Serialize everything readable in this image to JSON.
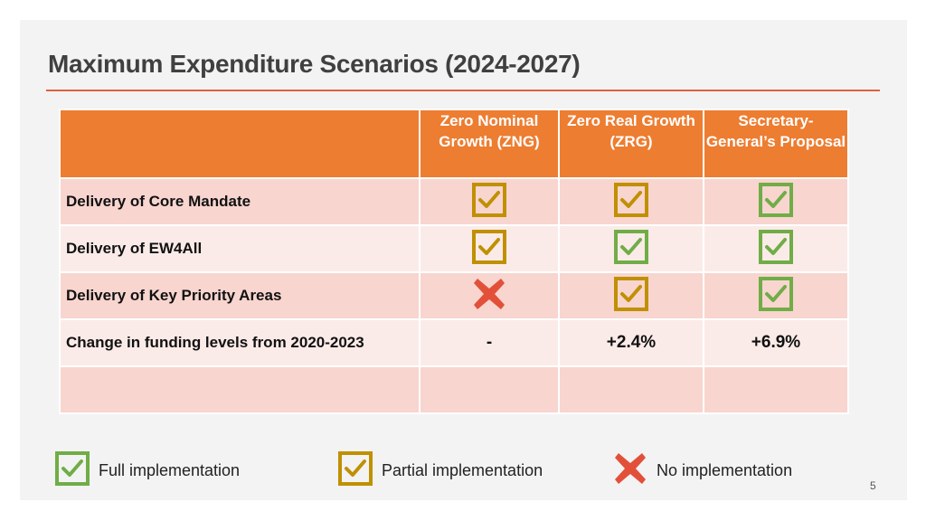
{
  "slide": {
    "title": "Maximum Expenditure Scenarios (2024-2027)",
    "page_number": "5"
  },
  "table": {
    "headers": [
      "",
      "Zero Nominal Growth (ZNG)",
      "Zero Real Growth (ZRG)",
      "Secretary-General’s Proposal"
    ],
    "rows": [
      {
        "label": "Delivery of Core Mandate",
        "cells": [
          "partial",
          "partial",
          "full"
        ]
      },
      {
        "label": "Delivery of EW4All",
        "cells": [
          "partial",
          "full",
          "full"
        ]
      },
      {
        "label": "Delivery of Key Priority Areas",
        "cells": [
          "none",
          "partial",
          "full"
        ]
      },
      {
        "label": "Change in funding levels from 2020-2023",
        "cells": [
          "-",
          "+2.4%",
          "+6.9%"
        ]
      },
      {
        "label": "",
        "cells": [
          "",
          "",
          ""
        ]
      }
    ]
  },
  "legend": {
    "full": "Full implementation",
    "partial": "Partial implementation",
    "none": "No implementation"
  },
  "colors": {
    "full": "#70ad47",
    "partial": "#c09000",
    "none": "#e2503a",
    "header": "#ed7d31",
    "accent_rule": "#e0603c"
  },
  "icons": {
    "full": "check-box-green-icon",
    "partial": "check-box-gold-icon",
    "none": "red-x-icon"
  }
}
